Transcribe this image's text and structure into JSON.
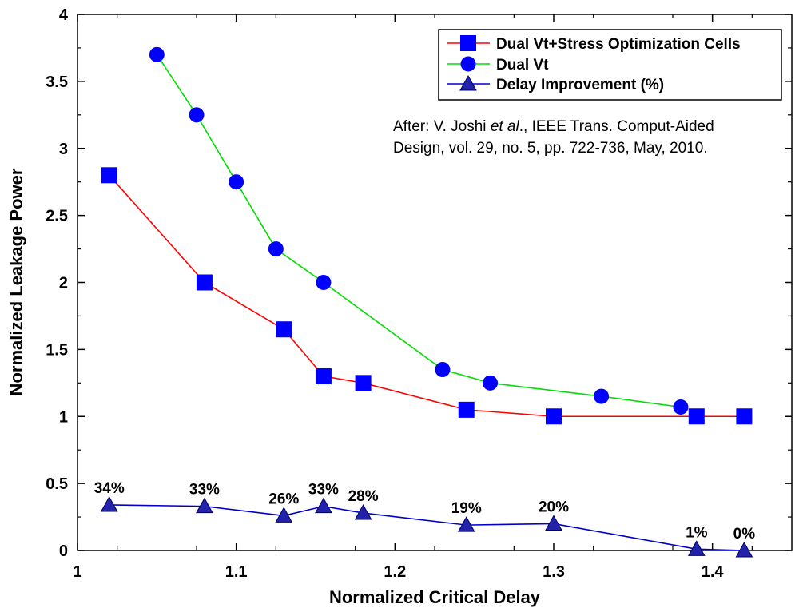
{
  "chart_data": {
    "type": "line",
    "xlabel": "Normalized Critical Delay",
    "ylabel": "Normalized Leakage Power",
    "xlim": [
      1.0,
      1.45
    ],
    "ylim": [
      0,
      4
    ],
    "x_ticks": [
      1,
      1.1,
      1.2,
      1.3,
      1.4
    ],
    "x_tick_labels": [
      "1",
      "1.1",
      "1.2",
      "1.3",
      "1.4"
    ],
    "y_ticks": [
      0,
      0.5,
      1,
      1.5,
      2,
      2.5,
      3,
      3.5,
      4
    ],
    "y_tick_labels": [
      "0",
      "0.5",
      "1",
      "1.5",
      "2",
      "2.5",
      "3",
      "3.5",
      "4"
    ],
    "grid": false,
    "legend_position": "top-right",
    "series": [
      {
        "name": "Dual Vt+Stress Optimization Cells",
        "color": "#ff0000",
        "marker": "square",
        "marker_color": "#0000ff",
        "x": [
          1.02,
          1.08,
          1.13,
          1.155,
          1.18,
          1.245,
          1.3,
          1.39,
          1.42
        ],
        "y": [
          2.8,
          2.0,
          1.65,
          1.3,
          1.25,
          1.05,
          1.0,
          1.0,
          1.0
        ]
      },
      {
        "name": "Dual Vt",
        "color": "#00dd00",
        "marker": "circle",
        "marker_color": "#0000ff",
        "x": [
          1.05,
          1.075,
          1.1,
          1.125,
          1.155,
          1.23,
          1.26,
          1.33,
          1.38
        ],
        "y": [
          3.7,
          3.25,
          2.75,
          2.25,
          2.0,
          1.35,
          1.25,
          1.15,
          1.07
        ]
      },
      {
        "name": "Delay Improvement (%)",
        "color": "#0000cc",
        "marker": "triangle",
        "marker_color": "#2222aa",
        "x": [
          1.02,
          1.08,
          1.13,
          1.155,
          1.18,
          1.245,
          1.3,
          1.39,
          1.42
        ],
        "y": [
          0.34,
          0.33,
          0.26,
          0.33,
          0.28,
          0.19,
          0.2,
          0.01,
          0.0
        ],
        "data_labels": [
          "34%",
          "33%",
          "26%",
          "33%",
          "28%",
          "19%",
          "20%",
          "1%",
          "0%"
        ]
      }
    ],
    "annotation": {
      "line1_prefix": "After: V. Joshi ",
      "line1_italic": "et al",
      "line1_suffix": "., IEEE Trans. Comput-Aided",
      "line2": "Design, vol. 29, no. 5, pp. 722-736, May, 2010."
    }
  }
}
